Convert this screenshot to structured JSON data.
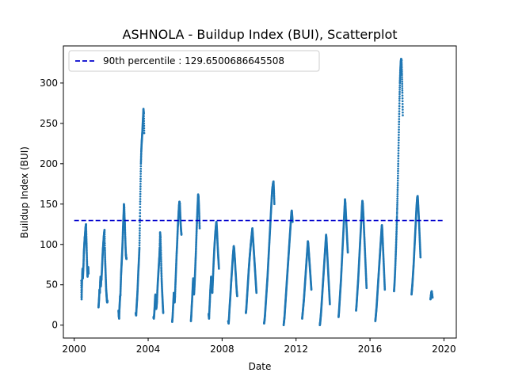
{
  "chart_data": {
    "type": "scatter",
    "title": "ASHNOLA - Buildup Index (BUI), Scatterplot",
    "xlabel": "Date",
    "ylabel": "Buildup Index (BUI)",
    "xlim": [
      "1999-06-01",
      "2020-09-01"
    ],
    "ylim": [
      -16,
      346
    ],
    "xticks": [
      "2000",
      "2004",
      "2008",
      "2012",
      "2016",
      "2020"
    ],
    "yticks": [
      0,
      50,
      100,
      150,
      200,
      250,
      300
    ],
    "grid": false,
    "legend_position": "top-left",
    "colors": {
      "points": "#1f77b4",
      "reference": "#0000cd"
    },
    "reference_line": {
      "label": "90th percentile : 129.6500686645508",
      "value": 129.6500686645508,
      "x_start": "2000-01-01",
      "x_end": "2020-01-01",
      "style": "dashed"
    },
    "series": [
      {
        "name": "",
        "seasons": [
          {
            "start": "2000-05-20",
            "end": "2000-10-10",
            "values": [
              55,
              32,
              48,
              62,
              70,
              58,
              66,
              75,
              88,
              95,
              102,
              108,
              112,
              118,
              122,
              125,
              110,
              96,
              80,
              68,
              60,
              66,
              72,
              64
            ]
          },
          {
            "start": "2001-04-25",
            "end": "2001-10-20",
            "values": [
              22,
              28,
              35,
              44,
              40,
              52,
              60,
              48,
              55,
              58,
              66,
              75,
              84,
              92,
              98,
              104,
              110,
              114,
              118,
              96,
              80,
              68,
              56,
              44,
              38,
              32,
              28,
              30
            ]
          },
          {
            "start": "2002-05-25",
            "end": "2002-10-30",
            "values": [
              18,
              12,
              8,
              20,
              28,
              35,
              38,
              50,
              62,
              70,
              78,
              86,
              95,
              105,
              118,
              128,
              138,
              150,
              145,
              132,
              124,
              110,
              98,
              88,
              84,
              82
            ]
          },
          {
            "start": "2003-05-01",
            "end": "2003-10-15",
            "values": [
              15,
              12,
              20,
              28,
              35,
              44,
              55,
              66,
              75,
              85,
              96,
              120,
              150,
              175,
              200,
              215,
              225,
              232,
              240,
              250,
              258,
              268,
              262,
              238
            ]
          },
          {
            "start": "2004-04-15",
            "end": "2004-10-25",
            "values": [
              10,
              8,
              14,
              22,
              32,
              38,
              28,
              20,
              24,
              30,
              42,
              52,
              60,
              68,
              76,
              84,
              96,
              115,
              108,
              90,
              72,
              56,
              44,
              34,
              24,
              15
            ]
          },
          {
            "start": "2005-04-20",
            "end": "2005-10-20",
            "values": [
              4,
              10,
              20,
              30,
              40,
              34,
              28,
              36,
              50,
              62,
              75,
              88,
              98,
              110,
              122,
              130,
              140,
              148,
              153,
              150,
              138,
              126,
              118,
              112
            ]
          },
          {
            "start": "2006-04-25",
            "end": "2006-10-15",
            "values": [
              5,
              12,
              22,
              30,
              40,
              50,
              58,
              48,
              38,
              45,
              55,
              66,
              78,
              90,
              104,
              118,
              130,
              142,
              152,
              162,
              158,
              148,
              135,
              120
            ]
          },
          {
            "start": "2007-04-10",
            "end": "2007-10-30",
            "values": [
              14,
              8,
              20,
              30,
              42,
              50,
              60,
              54,
              44,
              40,
              52,
              64,
              76,
              86,
              96,
              104,
              112,
              118,
              124,
              128,
              120,
              110,
              98,
              88,
              80,
              70
            ]
          },
          {
            "start": "2008-05-01",
            "end": "2008-10-25",
            "values": [
              5,
              2,
              10,
              20,
              28,
              36,
              45,
              54,
              62,
              70,
              78,
              86,
              92,
              98,
              94,
              86,
              78,
              68,
              60,
              50,
              42,
              36
            ]
          },
          {
            "start": "2009-04-15",
            "end": "2009-11-10",
            "values": [
              15,
              20,
              28,
              36,
              44,
              52,
              60,
              68,
              75,
              82,
              88,
              94,
              100,
              105,
              110,
              115,
              120,
              112,
              104,
              96,
              88,
              80,
              72,
              64,
              56,
              48,
              40
            ]
          },
          {
            "start": "2010-04-10",
            "end": "2010-10-30",
            "values": [
              2,
              6,
              12,
              20,
              28,
              36,
              44,
              52,
              60,
              70,
              80,
              90,
              100,
              110,
              120,
              130,
              140,
              150,
              160,
              168,
              172,
              176,
              178,
              165,
              150
            ]
          },
          {
            "start": "2011-05-01",
            "end": "2011-10-25",
            "values": [
              0,
              5,
              10,
              18,
              26,
              34,
              42,
              50,
              58,
              66,
              74,
              82,
              90,
              98,
              106,
              114,
              122,
              130,
              138,
              142,
              136,
              128
            ]
          },
          {
            "start": "2012-05-01",
            "end": "2012-10-30",
            "values": [
              8,
              14,
              20,
              26,
              32,
              40,
              48,
              56,
              64,
              72,
              80,
              88,
              96,
              104,
              100,
              92,
              84,
              76,
              68,
              60,
              52,
              44
            ]
          },
          {
            "start": "2013-04-15",
            "end": "2013-10-30",
            "values": [
              0,
              4,
              10,
              16,
              24,
              32,
              40,
              48,
              56,
              64,
              72,
              80,
              88,
              96,
              104,
              112,
              106,
              96,
              86,
              76,
              66,
              56,
              46,
              36,
              26
            ]
          },
          {
            "start": "2014-04-20",
            "end": "2014-10-20",
            "values": [
              10,
              16,
              24,
              32,
              40,
              48,
              56,
              66,
              76,
              86,
              96,
              106,
              116,
              126,
              136,
              146,
              156,
              150,
              140,
              130,
              120,
              110,
              100,
              90
            ]
          },
          {
            "start": "2015-04-01",
            "end": "2015-10-25",
            "values": [
              18,
              24,
              32,
              40,
              48,
              56,
              66,
              76,
              86,
              96,
              106,
              116,
              126,
              136,
              146,
              154,
              150,
              140,
              130,
              118,
              106,
              94,
              82,
              70,
              58,
              46
            ]
          },
          {
            "start": "2016-04-15",
            "end": "2016-10-20",
            "values": [
              5,
              10,
              16,
              22,
              30,
              38,
              46,
              54,
              62,
              70,
              78,
              86,
              94,
              102,
              110,
              118,
              124,
              116,
              104,
              92,
              80,
              68,
              56,
              44
            ]
          },
          {
            "start": "2017-04-20",
            "end": "2017-10-10",
            "values": [
              42,
              50,
              60,
              72,
              86,
              100,
              116,
              134,
              154,
              176,
              200,
              226,
              252,
              278,
              300,
              315,
              325,
              330,
              328,
              310,
              288,
              260
            ]
          },
          {
            "start": "2018-04-01",
            "end": "2018-09-25",
            "values": [
              38,
              44,
              50,
              58,
              66,
              74,
              84,
              94,
              104,
              114,
              124,
              134,
              144,
              152,
              158,
              160,
              152,
              142,
              132,
              120,
              108,
              96,
              84
            ]
          },
          {
            "start": "2019-04-10",
            "end": "2019-05-20",
            "values": [
              32,
              36,
              40,
              42,
              38,
              34
            ]
          }
        ]
      }
    ]
  }
}
